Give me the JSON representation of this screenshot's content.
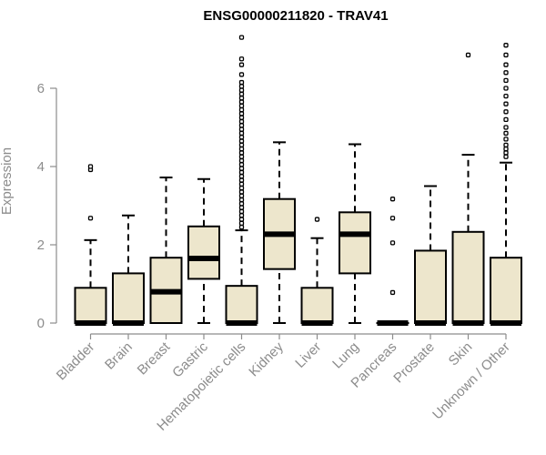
{
  "chart_data": {
    "type": "box",
    "title": "ENSG00000211820 - TRAV41",
    "xlabel": "",
    "ylabel": "Expression",
    "ylim": [
      0,
      7.5
    ],
    "yticks": [
      0,
      2,
      4,
      6
    ],
    "box_fill": "#ede6cc",
    "stroke_color": "#000000",
    "axis_color": "#8c8c8c",
    "categories": [
      "Bladder",
      "Brain",
      "Breast",
      "Gastric",
      "Hematopoietic cells",
      "Kidney",
      "Liver",
      "Lung",
      "Pancreas",
      "Prostate",
      "Skin",
      "Unknown / Other"
    ],
    "boxes": [
      {
        "category": "Bladder",
        "min": 0,
        "q1": 0,
        "median": 0,
        "q3": 0.9,
        "max": 2.12,
        "outliers": [
          2.68,
          3.92,
          4.0
        ]
      },
      {
        "category": "Brain",
        "min": 0,
        "q1": 0,
        "median": 0,
        "q3": 1.27,
        "max": 2.75,
        "outliers": []
      },
      {
        "category": "Breast",
        "min": 0,
        "q1": 0,
        "median": 0.8,
        "q3": 1.67,
        "max": 3.72,
        "outliers": []
      },
      {
        "category": "Gastric",
        "min": 0,
        "q1": 1.13,
        "median": 1.65,
        "q3": 2.47,
        "max": 3.68,
        "outliers": []
      },
      {
        "category": "Hematopoietic cells",
        "min": 0,
        "q1": 0,
        "median": 0,
        "q3": 0.95,
        "max": 2.37,
        "outliers": [
          2.45,
          2.55,
          2.65,
          2.75,
          2.85,
          2.95,
          3.05,
          3.15,
          3.25,
          3.35,
          3.45,
          3.55,
          3.65,
          3.75,
          3.85,
          3.95,
          4.05,
          4.15,
          4.25,
          4.35,
          4.45,
          4.55,
          4.65,
          4.75,
          4.85,
          4.95,
          5.05,
          5.15,
          5.25,
          5.35,
          5.45,
          5.55,
          5.65,
          5.75,
          5.85,
          5.95,
          6.05,
          6.15,
          6.35,
          6.6,
          6.75,
          7.3
        ]
      },
      {
        "category": "Kidney",
        "min": 0,
        "q1": 1.38,
        "median": 2.27,
        "q3": 3.17,
        "max": 4.62,
        "outliers": []
      },
      {
        "category": "Liver",
        "min": 0,
        "q1": 0,
        "median": 0,
        "q3": 0.9,
        "max": 2.17,
        "outliers": [
          2.65
        ]
      },
      {
        "category": "Lung",
        "min": 0,
        "q1": 1.27,
        "median": 2.27,
        "q3": 2.83,
        "max": 4.57,
        "outliers": []
      },
      {
        "category": "Pancreas",
        "min": 0,
        "q1": 0,
        "median": 0,
        "q3": 0,
        "max": 0,
        "outliers": [
          0.78,
          2.05,
          2.68,
          3.17
        ]
      },
      {
        "category": "Prostate",
        "min": 0,
        "q1": 0,
        "median": 0,
        "q3": 1.85,
        "max": 3.5,
        "outliers": []
      },
      {
        "category": "Skin",
        "min": 0,
        "q1": 0,
        "median": 0,
        "q3": 2.33,
        "max": 4.3,
        "outliers": [
          6.85
        ]
      },
      {
        "category": "Unknown / Other",
        "min": 0,
        "q1": 0,
        "median": 0,
        "q3": 1.67,
        "max": 4.1,
        "outliers": [
          4.25,
          4.35,
          4.45,
          4.55,
          4.7,
          4.85,
          5.0,
          5.2,
          5.4,
          5.6,
          5.8,
          6.0,
          6.2,
          6.4,
          6.6,
          6.85,
          7.1
        ]
      }
    ]
  }
}
